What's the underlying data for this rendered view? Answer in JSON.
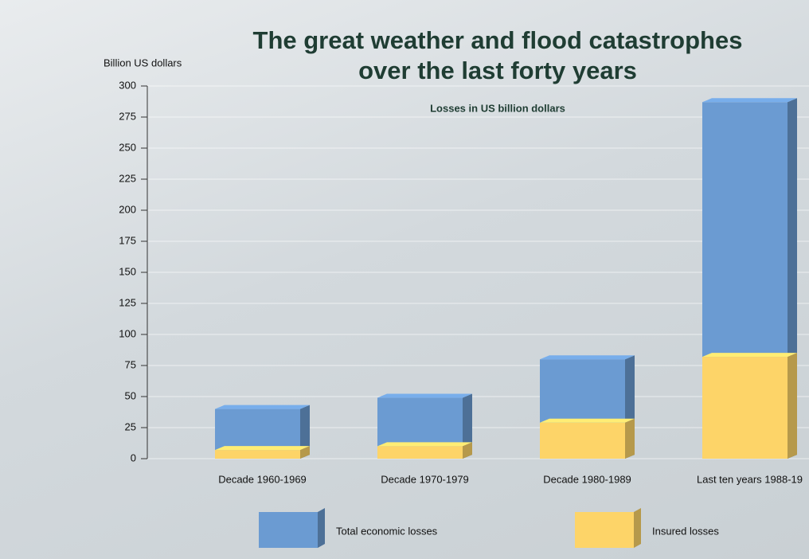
{
  "chart_data": {
    "type": "bar",
    "title": "The great weather and flood catastrophes over the last forty years",
    "subtitle": "Losses in US billion dollars",
    "y_label": "Billion US dollars",
    "categories": [
      "Decade 1960-1969",
      "Decade 1970-1979",
      "Decade 1980-1989",
      "Last ten years 1988-19"
    ],
    "series": [
      {
        "name": "Total economic losses",
        "color": "#6b9bd2",
        "values": [
          40,
          49,
          80,
          287
        ]
      },
      {
        "name": "Insured losses",
        "color": "#fdd468",
        "values": [
          7,
          10,
          29,
          82
        ]
      }
    ],
    "ylim": [
      0,
      300
    ],
    "yticks": [
      0,
      25,
      50,
      75,
      100,
      125,
      150,
      175,
      200,
      225,
      250,
      275,
      300
    ],
    "grid": true
  }
}
